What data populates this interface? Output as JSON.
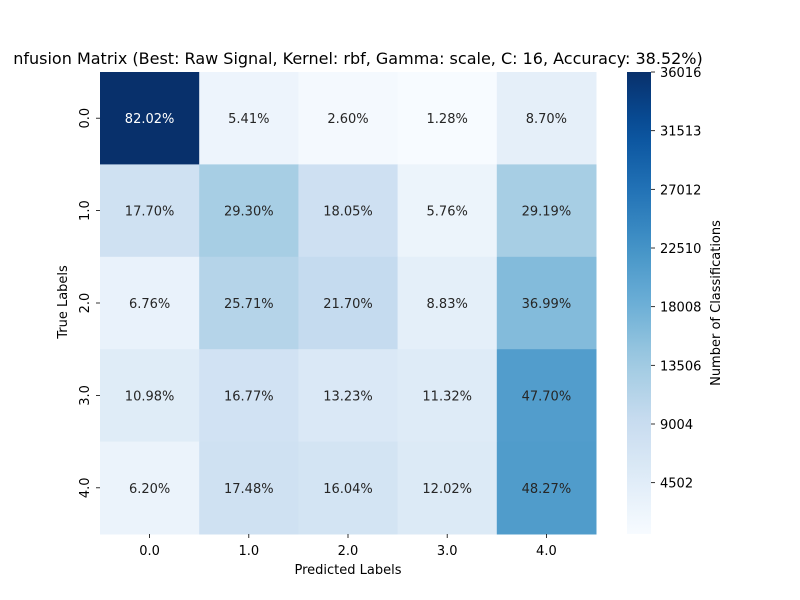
{
  "chart_data": {
    "type": "heatmap",
    "title": "nfusion Matrix (Best: Raw Signal, Kernel: rbf, Gamma: scale, C: 16, Accuracy: 38.52%)",
    "xlabel": "Predicted Labels",
    "ylabel": "True Labels",
    "x_categories": [
      "0.0",
      "1.0",
      "2.0",
      "3.0",
      "4.0"
    ],
    "y_categories": [
      "0.0",
      "1.0",
      "2.0",
      "3.0",
      "4.0"
    ],
    "cell_labels": [
      [
        "82.02%",
        "5.41%",
        "2.60%",
        "1.28%",
        "8.70%"
      ],
      [
        "17.70%",
        "29.30%",
        "18.05%",
        "5.76%",
        "29.19%"
      ],
      [
        "6.76%",
        "25.71%",
        "21.70%",
        "8.83%",
        "36.99%"
      ],
      [
        "10.98%",
        "16.77%",
        "13.23%",
        "11.32%",
        "47.70%"
      ],
      [
        "6.20%",
        "17.48%",
        "16.04%",
        "12.02%",
        "48.27%"
      ]
    ],
    "values": [
      [
        36017,
        2376,
        1142,
        562,
        3821
      ],
      [
        7772,
        12867,
        7927,
        2530,
        12819
      ],
      [
        2969,
        11290,
        9529,
        3877,
        16243
      ],
      [
        4822,
        7364,
        5810,
        4971,
        20947
      ],
      [
        2722,
        7675,
        7044,
        5278,
        21198
      ]
    ],
    "colorbar": {
      "label": "Number of Classifications",
      "min": 562,
      "max": 36017,
      "ticks": [
        4502,
        9004,
        13506,
        18008,
        22510,
        27012,
        31513,
        36016
      ],
      "colormap": "Blues"
    },
    "grid": false,
    "legend": "none"
  }
}
